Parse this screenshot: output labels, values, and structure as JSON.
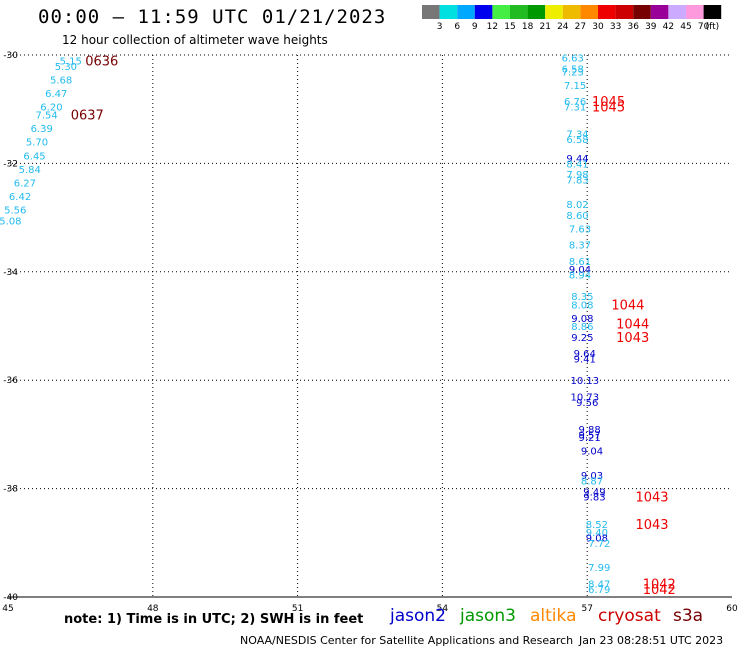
{
  "header": {
    "title": "00:00 – 11:59 UTC 01/21/2023",
    "subtitle": "12 hour collection of altimeter wave heights"
  },
  "colorbar": {
    "swatches": [
      "#777777",
      "#00e0e0",
      "#00a8ff",
      "#0000ee",
      "#44ee44",
      "#22bb22",
      "#009900",
      "#eeee00",
      "#eebb00",
      "#ff8800",
      "#ee0000",
      "#cc0000",
      "#770000",
      "#990099",
      "#ccaaff",
      "#ff99dd",
      "#000000"
    ],
    "tick_labels": [
      "3",
      "6",
      "9",
      "12",
      "15",
      "18",
      "21",
      "24",
      "27",
      "30",
      "33",
      "36",
      "39",
      "42",
      "45",
      "70"
    ],
    "unit": "(ft)"
  },
  "footer": {
    "note": "note: 1) Time is in UTC; 2) SWH is in feet",
    "satellites": [
      {
        "name": "jason2",
        "color": "#0000cc"
      },
      {
        "name": "jason3",
        "color": "#009900"
      },
      {
        "name": "altika",
        "color": "#ff8800"
      },
      {
        "name": "cryosat",
        "color": "#cc0000"
      },
      {
        "name": "s3a",
        "color": "#770000"
      }
    ],
    "credit": "NOAA/NESDIS Center for Satellite Applications and Research",
    "stamp": "Jan 23 08:28:51 UTC 2023"
  },
  "chart_data": {
    "type": "scatter",
    "title": "00:00 – 11:59 UTC 01/21/2023",
    "subtitle": "12 hour collection of altimeter wave heights",
    "xlim": [
      45,
      60
    ],
    "ylim": [
      -40,
      -30
    ],
    "x_ticks": [
      45,
      48,
      51,
      54,
      57,
      60
    ],
    "y_ticks": [
      -30,
      -32,
      -34,
      -36,
      -38,
      -40
    ],
    "grid": true,
    "points": [
      {
        "lon": 46.3,
        "lat": -30.1,
        "label": "5.15",
        "color": "#22bbee"
      },
      {
        "lon": 46.2,
        "lat": -30.2,
        "label": "5.30",
        "color": "#22bbee"
      },
      {
        "lon": 46.1,
        "lat": -30.45,
        "label": "5.68",
        "color": "#22bbee"
      },
      {
        "lon": 46.0,
        "lat": -30.7,
        "label": "6.47",
        "color": "#22bbee"
      },
      {
        "lon": 45.9,
        "lat": -30.95,
        "label": "6.20",
        "color": "#22bbee"
      },
      {
        "lon": 45.8,
        "lat": -31.1,
        "label": "7.54",
        "color": "#22bbee"
      },
      {
        "lon": 45.7,
        "lat": -31.35,
        "label": "6.39",
        "color": "#22bbee"
      },
      {
        "lon": 45.6,
        "lat": -31.6,
        "label": "5.70",
        "color": "#22bbee"
      },
      {
        "lon": 45.55,
        "lat": -31.85,
        "label": "6.45",
        "color": "#22bbee"
      },
      {
        "lon": 45.45,
        "lat": -32.1,
        "label": "5.84",
        "color": "#22bbee"
      },
      {
        "lon": 45.35,
        "lat": -32.35,
        "label": "6.27",
        "color": "#22bbee"
      },
      {
        "lon": 45.25,
        "lat": -32.6,
        "label": "6.42",
        "color": "#22bbee"
      },
      {
        "lon": 45.15,
        "lat": -32.85,
        "label": "5.56",
        "color": "#22bbee"
      },
      {
        "lon": 45.05,
        "lat": -33.05,
        "label": "5.08",
        "color": "#22bbee"
      },
      {
        "lon": 56.7,
        "lat": -30.05,
        "label": "6.63",
        "color": "#22bbee"
      },
      {
        "lon": 56.7,
        "lat": -30.25,
        "label": "6.58",
        "color": "#22bbee"
      },
      {
        "lon": 56.7,
        "lat": -30.3,
        "label": "7.23",
        "color": "#22bbee"
      },
      {
        "lon": 56.75,
        "lat": -30.55,
        "label": "7.15",
        "color": "#22bbee"
      },
      {
        "lon": 56.75,
        "lat": -30.85,
        "label": "6.76",
        "color": "#22bbee"
      },
      {
        "lon": 56.75,
        "lat": -30.95,
        "label": "7.31",
        "color": "#22bbee"
      },
      {
        "lon": 56.8,
        "lat": -31.45,
        "label": "7.34",
        "color": "#22bbee"
      },
      {
        "lon": 56.8,
        "lat": -31.55,
        "label": "6.58",
        "color": "#22bbee"
      },
      {
        "lon": 56.8,
        "lat": -31.9,
        "label": "9.44",
        "color": "#0000cc"
      },
      {
        "lon": 56.8,
        "lat": -32.0,
        "label": "8.41",
        "color": "#22bbee"
      },
      {
        "lon": 56.8,
        "lat": -32.2,
        "label": "7.98",
        "color": "#22bbee"
      },
      {
        "lon": 56.8,
        "lat": -32.3,
        "label": "7.83",
        "color": "#22bbee"
      },
      {
        "lon": 56.8,
        "lat": -32.75,
        "label": "8.02",
        "color": "#22bbee"
      },
      {
        "lon": 56.8,
        "lat": -32.95,
        "label": "8.60",
        "color": "#22bbee"
      },
      {
        "lon": 56.85,
        "lat": -33.2,
        "label": "7.63",
        "color": "#22bbee"
      },
      {
        "lon": 56.85,
        "lat": -33.5,
        "label": "8.37",
        "color": "#22bbee"
      },
      {
        "lon": 56.85,
        "lat": -33.8,
        "label": "8.61",
        "color": "#22bbee"
      },
      {
        "lon": 56.85,
        "lat": -33.95,
        "label": "9.04",
        "color": "#0000cc"
      },
      {
        "lon": 56.85,
        "lat": -34.05,
        "label": "8.94",
        "color": "#22bbee"
      },
      {
        "lon": 56.9,
        "lat": -34.45,
        "label": "8.35",
        "color": "#22bbee"
      },
      {
        "lon": 56.9,
        "lat": -34.6,
        "label": "8.08",
        "color": "#22bbee"
      },
      {
        "lon": 56.9,
        "lat": -34.85,
        "label": "9.08",
        "color": "#0000cc"
      },
      {
        "lon": 56.9,
        "lat": -35.0,
        "label": "8.86",
        "color": "#22bbee"
      },
      {
        "lon": 56.9,
        "lat": -35.2,
        "label": "9.25",
        "color": "#0000cc"
      },
      {
        "lon": 56.95,
        "lat": -35.5,
        "label": "9.64",
        "color": "#0000cc"
      },
      {
        "lon": 56.95,
        "lat": -35.6,
        "label": "9.41",
        "color": "#0000cc"
      },
      {
        "lon": 56.95,
        "lat": -36.0,
        "label": "10.13",
        "color": "#0000cc"
      },
      {
        "lon": 56.95,
        "lat": -36.3,
        "label": "10.73",
        "color": "#0000cc"
      },
      {
        "lon": 57.0,
        "lat": -36.4,
        "label": "9.56",
        "color": "#0000cc"
      },
      {
        "lon": 57.05,
        "lat": -36.9,
        "label": "9.88",
        "color": "#0000cc"
      },
      {
        "lon": 57.05,
        "lat": -37.0,
        "label": "9.57",
        "color": "#0000cc"
      },
      {
        "lon": 57.05,
        "lat": -37.05,
        "label": "9.21",
        "color": "#0000cc"
      },
      {
        "lon": 57.1,
        "lat": -37.3,
        "label": "9.04",
        "color": "#0000cc"
      },
      {
        "lon": 57.1,
        "lat": -37.75,
        "label": "9.03",
        "color": "#0000cc"
      },
      {
        "lon": 57.1,
        "lat": -37.85,
        "label": "8.87",
        "color": "#22bbee"
      },
      {
        "lon": 57.15,
        "lat": -38.05,
        "label": "9.49",
        "color": "#0000cc"
      },
      {
        "lon": 57.15,
        "lat": -38.15,
        "label": "9.83",
        "color": "#0000cc"
      },
      {
        "lon": 57.2,
        "lat": -38.65,
        "label": "8.52",
        "color": "#22bbee"
      },
      {
        "lon": 57.2,
        "lat": -38.8,
        "label": "9.40",
        "color": "#22bbee"
      },
      {
        "lon": 57.2,
        "lat": -38.9,
        "label": "9.08",
        "color": "#0000cc"
      },
      {
        "lon": 57.25,
        "lat": -39.0,
        "label": "7.72",
        "color": "#22bbee"
      },
      {
        "lon": 57.25,
        "lat": -39.45,
        "label": "7.99",
        "color": "#22bbee"
      },
      {
        "lon": 57.25,
        "lat": -39.75,
        "label": "8.47",
        "color": "#22bbee"
      },
      {
        "lon": 57.25,
        "lat": -39.85,
        "label": "6.79",
        "color": "#22bbee"
      }
    ],
    "time_labels": [
      {
        "lon": 46.6,
        "lat": -30.1,
        "label": "0636",
        "color": "#770000"
      },
      {
        "lon": 46.3,
        "lat": -31.1,
        "label": "0637",
        "color": "#770000"
      },
      {
        "lon": 57.1,
        "lat": -30.85,
        "label": "1045",
        "color": "#ee0000"
      },
      {
        "lon": 57.1,
        "lat": -30.95,
        "label": "1045",
        "color": "#ee0000"
      },
      {
        "lon": 57.5,
        "lat": -34.6,
        "label": "1044",
        "color": "#ee0000"
      },
      {
        "lon": 57.6,
        "lat": -34.95,
        "label": "1044",
        "color": "#ee0000"
      },
      {
        "lon": 57.6,
        "lat": -35.2,
        "label": "1043",
        "color": "#ee0000"
      },
      {
        "lon": 58.0,
        "lat": -38.15,
        "label": "1043",
        "color": "#ee0000"
      },
      {
        "lon": 58.0,
        "lat": -38.65,
        "label": "1043",
        "color": "#ee0000"
      },
      {
        "lon": 58.15,
        "lat": -39.75,
        "label": "1042",
        "color": "#ee0000"
      },
      {
        "lon": 58.15,
        "lat": -39.85,
        "label": "1042",
        "color": "#ee0000"
      }
    ]
  }
}
